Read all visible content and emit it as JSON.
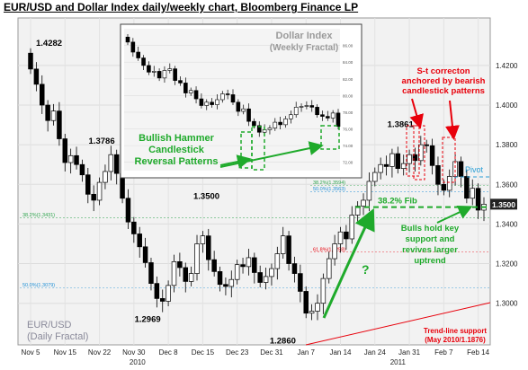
{
  "title": "EUR/USD and Dollar Index daily/weekly chart, Bloomberg Finance LP",
  "chart_data": {
    "type": "candlestick",
    "title": "EUR/USD and Dollar Index daily/weekly chart, Bloomberg Finance LP",
    "main": {
      "label_line1": "EUR/USD",
      "label_line2": "(Daily Fractal)",
      "y_ticks": [
        "1.4200",
        "1.4000",
        "1.3800",
        "1.3600",
        "1.3400",
        "1.3200",
        "1.3000"
      ],
      "y_tick_values": [
        1.42,
        1.4,
        1.38,
        1.36,
        1.34,
        1.32,
        1.3
      ],
      "ylim": [
        1.284,
        1.434
      ],
      "x_ticks": [
        "Nov 5",
        "Nov 15",
        "Nov 22",
        "Nov 30",
        "Dec 8",
        "Dec 15",
        "Dec 23",
        "Dec 31",
        "Jan 7",
        "Jan 14",
        "Jan 24",
        "Jan 31",
        "Feb 7",
        "Feb 14"
      ],
      "year_labels": [
        "2010",
        "2011"
      ],
      "last_price": "1.3500",
      "pivot_label": "Pivot",
      "fib_label": "38.2% Fib",
      "fib_levels": [
        {
          "label": "38.2%(1.3431)",
          "value": 1.3431
        },
        {
          "label": "50.0%(1.3079)",
          "value": 1.3079
        },
        {
          "label": "38.2%(1.3594)",
          "value": 1.3594
        },
        {
          "label": "50.0%(1.3563)",
          "value": 1.3563
        },
        {
          "label": "61.8%(1.3258)",
          "value": 1.3258
        }
      ],
      "price_labels": [
        {
          "text": "1.4282",
          "value": 1.4282
        },
        {
          "text": "1.3786",
          "value": 1.3786
        },
        {
          "text": "1.3500",
          "value": 1.35
        },
        {
          "text": "1.2969",
          "value": 1.2969
        },
        {
          "text": "1.2860",
          "value": 1.286
        },
        {
          "text": "1.3861",
          "value": 1.3861
        }
      ],
      "annotations": [
        {
          "lines": [
            "S-t correcton",
            "anchored by bearish",
            "candlestick patterns"
          ],
          "color": "#e8000b"
        },
        {
          "lines": [
            "Bulls hold key",
            "support and",
            "revives larger",
            "uptrend"
          ],
          "color": "#1faa2b"
        },
        {
          "lines": [
            "Trend-line support",
            "(May 2010/1.1876)"
          ],
          "color": "#e8000b"
        },
        {
          "lines": [
            "?"
          ],
          "color": "#1faa2b"
        }
      ],
      "close": [
        1.4182,
        1.4105,
        1.4,
        1.3922,
        1.397,
        1.383,
        1.371,
        1.3745,
        1.37,
        1.3648,
        1.355,
        1.352,
        1.361,
        1.3665,
        1.375,
        1.3655,
        1.353,
        1.341,
        1.335,
        1.3285,
        1.3205,
        1.31,
        1.3024,
        1.301,
        1.309,
        1.321,
        1.318,
        1.311,
        1.315,
        1.33,
        1.334,
        1.322,
        1.316,
        1.3095,
        1.3085,
        1.312,
        1.3195,
        1.3185,
        1.323,
        1.3155,
        1.3105,
        1.3135,
        1.3175,
        1.325,
        1.334,
        1.32,
        1.315,
        1.306,
        1.295,
        1.296,
        1.3,
        1.3125,
        1.3225,
        1.33,
        1.336,
        1.3325,
        1.3445,
        1.349,
        1.352,
        1.3615,
        1.366,
        1.37,
        1.369,
        1.3755,
        1.368,
        1.3705,
        1.375,
        1.372,
        1.38,
        1.3795,
        1.3695,
        1.36,
        1.357,
        1.364,
        1.3715,
        1.364,
        1.353,
        1.358,
        1.347,
        1.35
      ]
    },
    "inset": {
      "title_line1": "Dollar Index",
      "title_line2": "(Weekly Fractal)",
      "annotation_lines": [
        "Bullish Hammer",
        "Candlestick",
        "Reversal Patterns"
      ],
      "y_ticks": [
        "86.00",
        "84.00",
        "82.00",
        "80.00",
        "78.00",
        "76.00",
        "74.00",
        "72.00"
      ],
      "y_tick_values": [
        86,
        84,
        82,
        80,
        78,
        76,
        74,
        72
      ],
      "ylim": [
        71,
        88
      ],
      "close": [
        86.4,
        85.2,
        84.5,
        83.6,
        82.8,
        82.9,
        82.1,
        83.0,
        83.2,
        81.8,
        81.5,
        80.3,
        80.6,
        79.6,
        78.8,
        79.2,
        78.9,
        79.5,
        80.2,
        80.1,
        79.2,
        78.1,
        78.4,
        76.9,
        76.4,
        75.6,
        75.9,
        76.1,
        76.8,
        76.5,
        77.2,
        77.7,
        78.6,
        78.7,
        78.8,
        78.6,
        77.7,
        77.5,
        77.3,
        77.9,
        76.3
      ]
    }
  }
}
